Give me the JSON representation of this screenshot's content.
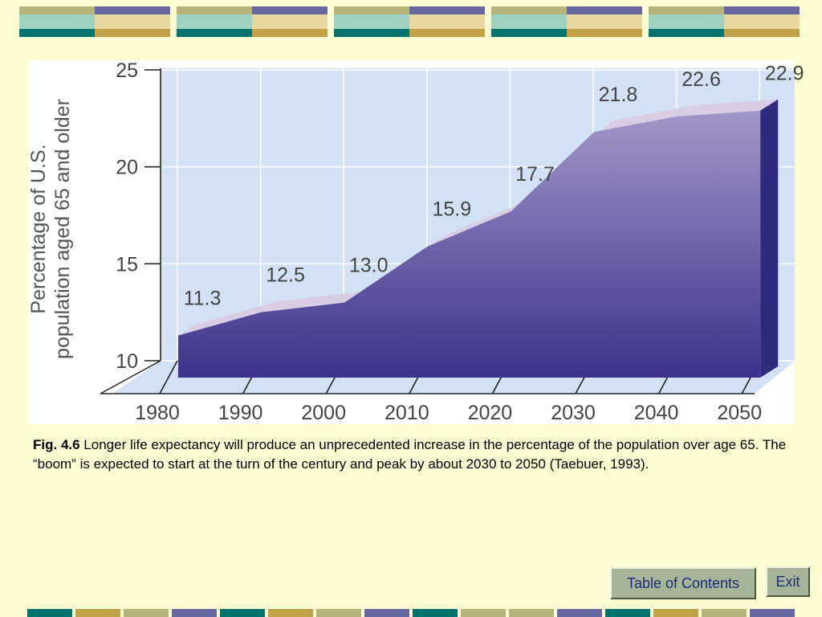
{
  "colors": {
    "background": "#fbfbd2",
    "banner_olive": "#b5b47b",
    "banner_purple": "#69679f",
    "banner_teal": "#00736d",
    "banner_gold": "#c2a246",
    "banner_cream": "#e8d8a0",
    "banner_mint": "#9ed2c0",
    "plot_background": "#d2e1f6",
    "area_fill_top": "#a297c8",
    "area_fill_bottom": "#3d318d",
    "area_side": "#2e2a7d"
  },
  "chart_data": {
    "type": "area",
    "ylabel": "Percentage of U.S. population aged 65 and older",
    "ylabel_lines": [
      "Percentage of U.S.",
      "population aged 65 and older"
    ],
    "x": [
      1980,
      1990,
      2000,
      2010,
      2020,
      2030,
      2040,
      2050
    ],
    "x_tick_labels": [
      "1980",
      "1990",
      "2000",
      "2010",
      "2020",
      "2030",
      "2040",
      "2050"
    ],
    "values": [
      11.3,
      12.5,
      13.0,
      15.9,
      17.7,
      21.8,
      22.6,
      22.9
    ],
    "data_labels": [
      "11.3",
      "12.5",
      "13.0",
      "15.9",
      "17.7",
      "21.8",
      "22.6",
      "22.9"
    ],
    "y_ticks": [
      10,
      15,
      20,
      25
    ],
    "y_tick_labels": [
      "10",
      "15",
      "20",
      "25"
    ],
    "ylim": [
      10,
      25
    ],
    "grid": true,
    "three_d": true
  },
  "caption": {
    "fig_label": "Fig. 4.6",
    "text": " Longer life expectancy will produce an unprecedented increase in the percentage of the population over age 65. The “boom” is expected to start at the turn of the century and peak by about 2030 to 2050 (Taebuer, 1993)."
  },
  "nav": {
    "toc_label": "Table of Contents",
    "exit_label": "Exit"
  }
}
